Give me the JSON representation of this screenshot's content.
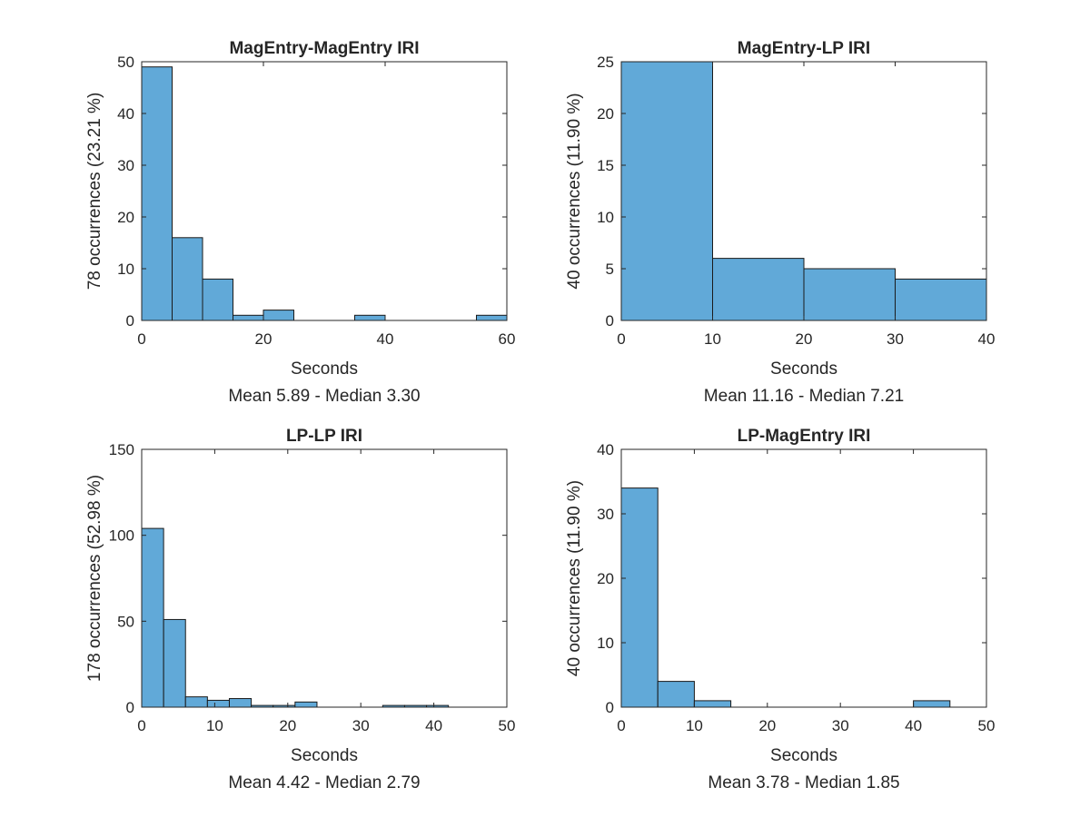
{
  "chart_data": [
    {
      "type": "bar",
      "title": "MagEntry-MagEntry IRI",
      "xlabel": "Seconds",
      "ylabel": "78 occurrences (23.21 %)",
      "subtitle": "Mean 5.89 - Median 3.30",
      "bin_edges": [
        0,
        5,
        10,
        15,
        20,
        25,
        30,
        35,
        40,
        45,
        50,
        55,
        60
      ],
      "values": [
        49,
        16,
        8,
        1,
        2,
        0,
        0,
        1,
        0,
        0,
        0,
        1
      ],
      "xlim": [
        0,
        60
      ],
      "ylim": [
        0,
        50
      ],
      "xticks": [
        "0",
        "20",
        "40",
        "60"
      ],
      "yticks": [
        "0",
        "10",
        "20",
        "30",
        "40",
        "50"
      ],
      "grid": false,
      "bar_color": "#61a9d8"
    },
    {
      "type": "bar",
      "title": "MagEntry-LP IRI",
      "xlabel": "Seconds",
      "ylabel": "40 occurrences (11.90 %)",
      "subtitle": "Mean 11.16 - Median 7.21",
      "bin_edges": [
        0,
        10,
        20,
        30,
        40
      ],
      "values": [
        25,
        6,
        5,
        4
      ],
      "xlim": [
        0,
        40
      ],
      "ylim": [
        0,
        25
      ],
      "xticks": [
        "0",
        "10",
        "20",
        "30",
        "40"
      ],
      "yticks": [
        "0",
        "5",
        "10",
        "15",
        "20",
        "25"
      ],
      "grid": false,
      "bar_color": "#61a9d8"
    },
    {
      "type": "bar",
      "title": "LP-LP IRI",
      "xlabel": "Seconds",
      "ylabel": "178 occurrences (52.98 %)",
      "subtitle": "Mean 4.42 - Median 2.79",
      "bin_edges": [
        0,
        3,
        6,
        9,
        12,
        15,
        18,
        21,
        24,
        27,
        30,
        33,
        36,
        39,
        42,
        45,
        48
      ],
      "values": [
        104,
        51,
        6,
        4,
        5,
        1,
        1,
        3,
        0,
        0,
        0,
        1,
        1,
        1,
        0,
        0
      ],
      "xlim": [
        0,
        50
      ],
      "ylim": [
        0,
        150
      ],
      "xticks": [
        "0",
        "10",
        "20",
        "30",
        "40",
        "50"
      ],
      "yticks": [
        "0",
        "50",
        "100",
        "150"
      ],
      "grid": false,
      "bar_color": "#61a9d8"
    },
    {
      "type": "bar",
      "title": "LP-MagEntry IRI",
      "xlabel": "Seconds",
      "ylabel": "40 occurrences (11.90 %)",
      "subtitle": "Mean 3.78 - Median 1.85",
      "bin_edges": [
        0,
        5,
        10,
        15,
        20,
        25,
        30,
        35,
        40,
        45
      ],
      "values": [
        34,
        4,
        1,
        0,
        0,
        0,
        0,
        0,
        1
      ],
      "xlim": [
        0,
        50
      ],
      "ylim": [
        0,
        40
      ],
      "xticks": [
        "0",
        "10",
        "20",
        "30",
        "40",
        "50"
      ],
      "yticks": [
        "0",
        "10",
        "20",
        "30",
        "40"
      ],
      "grid": false,
      "bar_color": "#61a9d8"
    }
  ]
}
